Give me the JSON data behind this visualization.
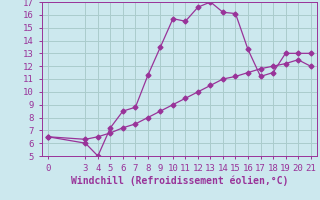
{
  "xlabel": "Windchill (Refroidissement éolien,°C)",
  "bg_color": "#cce8ee",
  "line_color": "#993399",
  "grid_color": "#aacccc",
  "line1_x": [
    0,
    3,
    4,
    5,
    6,
    7,
    8,
    9,
    10,
    11,
    12,
    13,
    14,
    15,
    16,
    17,
    18,
    19,
    20,
    21
  ],
  "line1_y": [
    6.5,
    6.0,
    5.0,
    7.2,
    8.5,
    8.8,
    11.3,
    13.5,
    15.7,
    15.5,
    16.6,
    17.0,
    16.2,
    16.1,
    13.3,
    11.2,
    11.5,
    13.0,
    13.0,
    13.0
  ],
  "line2_x": [
    0,
    3,
    4,
    5,
    6,
    7,
    8,
    9,
    10,
    11,
    12,
    13,
    14,
    15,
    16,
    17,
    18,
    19,
    20,
    21
  ],
  "line2_y": [
    6.5,
    6.3,
    6.5,
    6.8,
    7.2,
    7.5,
    8.0,
    8.5,
    9.0,
    9.5,
    10.0,
    10.5,
    11.0,
    11.2,
    11.5,
    11.8,
    12.0,
    12.2,
    12.5,
    12.0
  ],
  "xlim": [
    -0.5,
    21.5
  ],
  "ylim": [
    5,
    17
  ],
  "xticks": [
    0,
    3,
    4,
    5,
    6,
    7,
    8,
    9,
    10,
    11,
    12,
    13,
    14,
    15,
    16,
    17,
    18,
    19,
    20,
    21
  ],
  "yticks": [
    5,
    6,
    7,
    8,
    9,
    10,
    11,
    12,
    13,
    14,
    15,
    16,
    17
  ],
  "tick_fontsize": 6.5,
  "xlabel_fontsize": 7.0
}
